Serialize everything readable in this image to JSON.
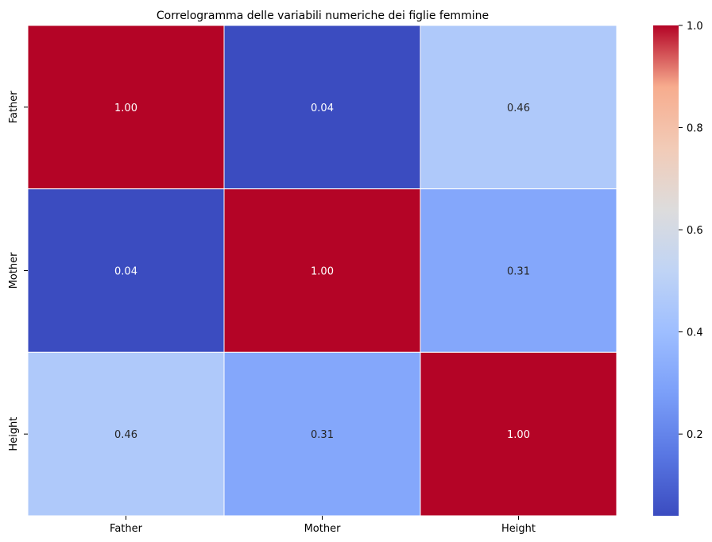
{
  "chart_data": {
    "type": "heatmap",
    "title": "Correlogramma delle variabili numeriche dei figlie femmine",
    "x_labels": [
      "Father",
      "Mother",
      "Height"
    ],
    "y_labels": [
      "Father",
      "Mother",
      "Height"
    ],
    "values": [
      [
        1.0,
        0.04,
        0.46
      ],
      [
        0.04,
        1.0,
        0.31
      ],
      [
        0.46,
        0.31,
        1.0
      ]
    ],
    "cell_text": [
      [
        "1.00",
        "0.04",
        "0.46"
      ],
      [
        "0.04",
        "1.00",
        "0.31"
      ],
      [
        "0.46",
        "0.31",
        "1.00"
      ]
    ],
    "colormap": "coolwarm",
    "colorbar": {
      "range": [
        0.04,
        1.0
      ],
      "ticks": [
        0.2,
        0.4,
        0.6,
        0.8,
        1.0
      ],
      "tick_labels": [
        "0.2",
        "0.4",
        "0.6",
        "0.8",
        "1.0"
      ]
    }
  }
}
